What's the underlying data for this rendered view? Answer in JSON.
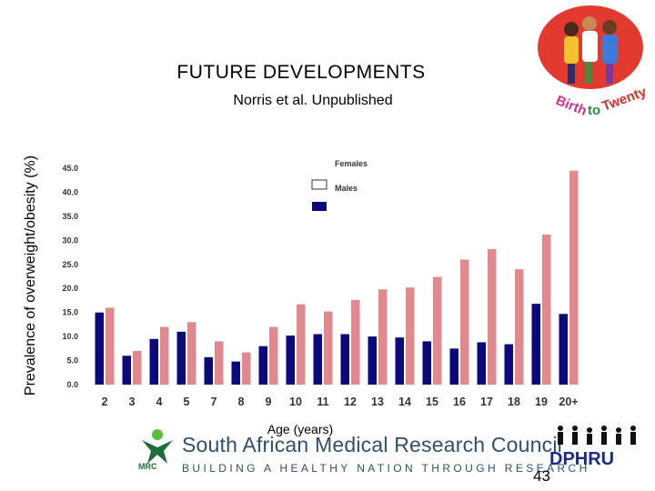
{
  "slide": {
    "title": "FUTURE DEVELOPMENTS",
    "subtitle": "Norris et al. Unpublished",
    "page_number": "43"
  },
  "logos": {
    "birth_to_twenty": "Birth to Twenty",
    "mrc_name": "South African Medical Research Council",
    "mrc_tagline": "BUILDING A HEALTHY NATION THROUGH RESEARCH",
    "mrc_abbr": "MRC",
    "dphru": "DPHRU"
  },
  "chart_data": {
    "type": "bar",
    "xlabel": "Age (years)",
    "ylabel": "Prevalence of overweight/obesity (%)",
    "ylim": [
      0,
      45
    ],
    "yticks": [
      "0.0",
      "5.0",
      "10.0",
      "15.0",
      "20.0",
      "25.0",
      "30.0",
      "35.0",
      "40.0",
      "45.0"
    ],
    "categories": [
      "2",
      "3",
      "4",
      "5",
      "7",
      "8",
      "9",
      "10",
      "11",
      "12",
      "13",
      "14",
      "15",
      "16",
      "17",
      "18",
      "19",
      "20+"
    ],
    "legend": [
      "Females",
      "Males"
    ],
    "legend_position": "top-left",
    "grid": false,
    "series": [
      {
        "name": "Males",
        "color": "#0a0a7a",
        "values": [
          15.0,
          6.0,
          9.5,
          11.0,
          5.7,
          4.8,
          8.0,
          10.2,
          10.5,
          10.5,
          10.0,
          9.8,
          9.0,
          7.5,
          8.8,
          8.4,
          16.8,
          14.7
        ]
      },
      {
        "name": "Females",
        "color": "#e08a8f",
        "values": [
          16.0,
          7.0,
          12.0,
          13.0,
          9.0,
          6.7,
          12.0,
          16.7,
          15.2,
          17.6,
          19.8,
          20.2,
          22.4,
          26.0,
          28.2,
          24.0,
          31.2,
          44.5
        ]
      }
    ]
  }
}
